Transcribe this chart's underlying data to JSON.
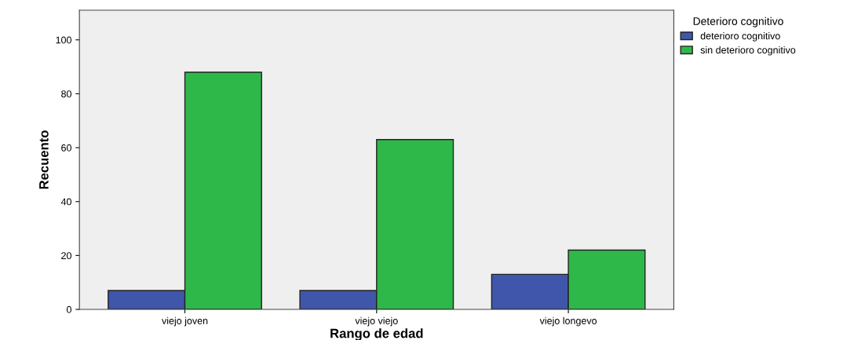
{
  "chart_data": {
    "type": "bar",
    "xlabel": "Rango de edad",
    "ylabel": "Recuento",
    "legend_title": "Deterioro cognitivo",
    "legend": "top right",
    "grid": false,
    "categories": [
      "viejo joven",
      "viejo viejo",
      "viejo longevo"
    ],
    "series": [
      {
        "name": "deterioro cognitivo",
        "color": "#3f56aa",
        "values": [
          7,
          7,
          13
        ]
      },
      {
        "name": "sin deterioro cognitivo",
        "color": "#2fb84a",
        "values": [
          88,
          63,
          22
        ]
      }
    ],
    "ylim": [
      0,
      111
    ],
    "yticks": [
      0,
      20,
      40,
      60,
      80,
      100
    ]
  }
}
